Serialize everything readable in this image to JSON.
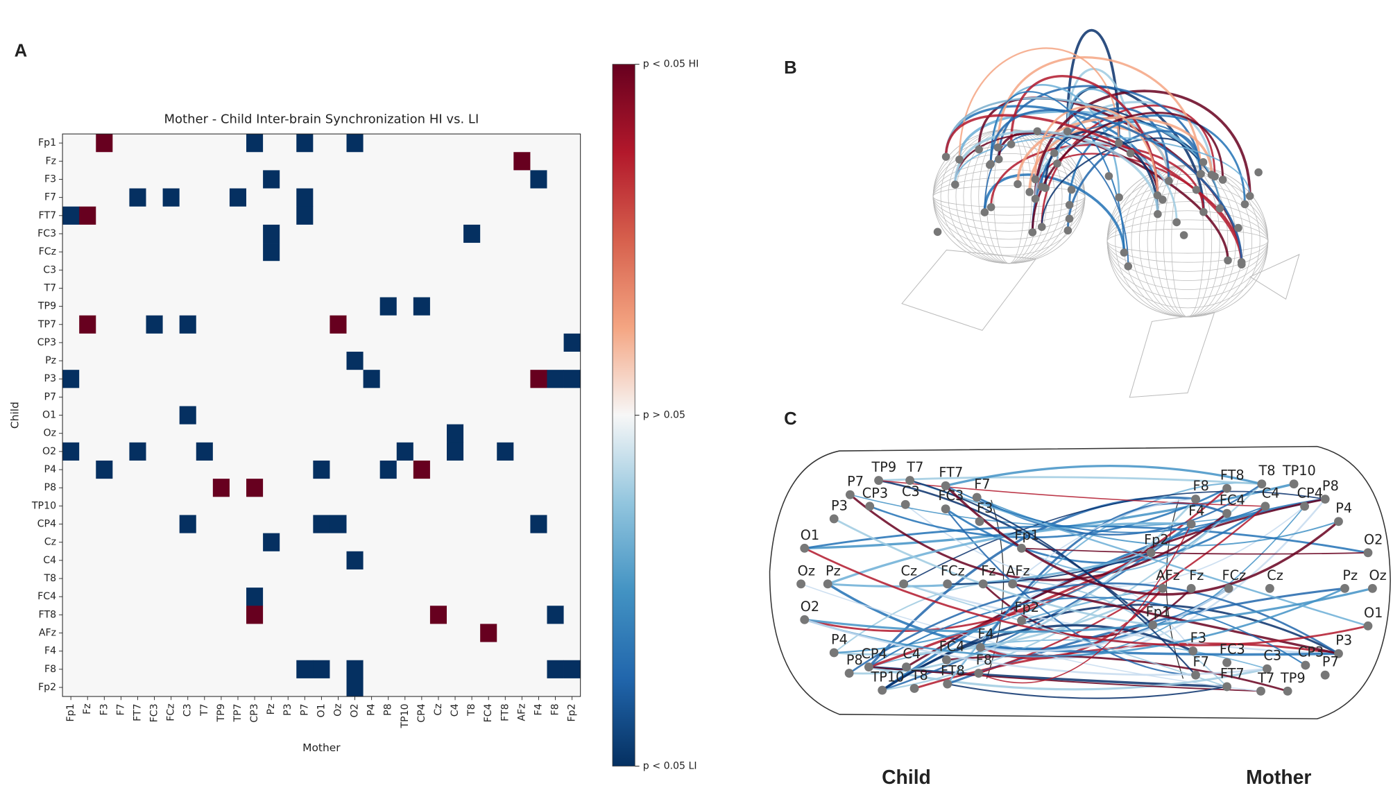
{
  "chart_data": {
    "type": "heatmap",
    "title": "Mother - Child Inter-brain Synchronization HI vs. LI",
    "x_label": "Mother",
    "y_label": "Child",
    "x_categories": [
      "Fp1",
      "Fz",
      "F3",
      "F7",
      "FT7",
      "FC3",
      "FCz",
      "C3",
      "T7",
      "TP9",
      "TP7",
      "CP3",
      "Pz",
      "P3",
      "P7",
      "O1",
      "Oz",
      "O2",
      "P4",
      "P8",
      "TP10",
      "CP4",
      "Cz",
      "C4",
      "T8",
      "FC4",
      "FT8",
      "AFz",
      "F4",
      "F8",
      "Fp2"
    ],
    "y_categories": [
      "Fp1",
      "Fz",
      "F3",
      "F7",
      "FT7",
      "FC3",
      "FCz",
      "C3",
      "T7",
      "TP9",
      "TP7",
      "CP3",
      "Pz",
      "P3",
      "P7",
      "O1",
      "Oz",
      "O2",
      "P4",
      "P8",
      "TP10",
      "CP4",
      "Cz",
      "C4",
      "T8",
      "FC4",
      "FT8",
      "AFz",
      "F4",
      "F8",
      "Fp2"
    ],
    "values": [
      [
        0,
        0,
        1,
        0,
        0,
        0,
        0,
        0,
        0,
        0,
        0,
        -1,
        0,
        0,
        -1,
        0,
        0,
        -1,
        0,
        0,
        0,
        0,
        0,
        0,
        0,
        0,
        0,
        0,
        0,
        0,
        0
      ],
      [
        0,
        0,
        0,
        0,
        0,
        0,
        0,
        0,
        0,
        0,
        0,
        0,
        0,
        0,
        0,
        0,
        0,
        0,
        0,
        0,
        0,
        0,
        0,
        0,
        0,
        0,
        0,
        1,
        0,
        0,
        0
      ],
      [
        0,
        0,
        0,
        0,
        0,
        0,
        0,
        0,
        0,
        0,
        0,
        0,
        -1,
        0,
        0,
        0,
        0,
        0,
        0,
        0,
        0,
        0,
        0,
        0,
        0,
        0,
        0,
        0,
        -1,
        0,
        0
      ],
      [
        0,
        0,
        0,
        0,
        -1,
        0,
        -1,
        0,
        0,
        0,
        -1,
        0,
        0,
        0,
        -1,
        0,
        0,
        0,
        0,
        0,
        0,
        0,
        0,
        0,
        0,
        0,
        0,
        0,
        0,
        0,
        0
      ],
      [
        -1,
        1,
        0,
        0,
        0,
        0,
        0,
        0,
        0,
        0,
        0,
        0,
        0,
        0,
        -1,
        0,
        0,
        0,
        0,
        0,
        0,
        0,
        0,
        0,
        0,
        0,
        0,
        0,
        0,
        0,
        0
      ],
      [
        0,
        0,
        0,
        0,
        0,
        0,
        0,
        0,
        0,
        0,
        0,
        0,
        -1,
        0,
        0,
        0,
        0,
        0,
        0,
        0,
        0,
        0,
        0,
        0,
        -1,
        0,
        0,
        0,
        0,
        0,
        0
      ],
      [
        0,
        0,
        0,
        0,
        0,
        0,
        0,
        0,
        0,
        0,
        0,
        0,
        -1,
        0,
        0,
        0,
        0,
        0,
        0,
        0,
        0,
        0,
        0,
        0,
        0,
        0,
        0,
        0,
        0,
        0,
        0
      ],
      [
        0,
        0,
        0,
        0,
        0,
        0,
        0,
        0,
        0,
        0,
        0,
        0,
        0,
        0,
        0,
        0,
        0,
        0,
        0,
        0,
        0,
        0,
        0,
        0,
        0,
        0,
        0,
        0,
        0,
        0,
        0
      ],
      [
        0,
        0,
        0,
        0,
        0,
        0,
        0,
        0,
        0,
        0,
        0,
        0,
        0,
        0,
        0,
        0,
        0,
        0,
        0,
        0,
        0,
        0,
        0,
        0,
        0,
        0,
        0,
        0,
        0,
        0,
        0
      ],
      [
        0,
        0,
        0,
        0,
        0,
        0,
        0,
        0,
        0,
        0,
        0,
        0,
        0,
        0,
        0,
        0,
        0,
        0,
        0,
        -1,
        0,
        -1,
        0,
        0,
        0,
        0,
        0,
        0,
        0,
        0,
        0
      ],
      [
        0,
        1,
        0,
        0,
        0,
        -1,
        0,
        -1,
        0,
        0,
        0,
        0,
        0,
        0,
        0,
        0,
        1,
        0,
        0,
        0,
        0,
        0,
        0,
        0,
        0,
        0,
        0,
        0,
        0,
        0,
        0
      ],
      [
        0,
        0,
        0,
        0,
        0,
        0,
        0,
        0,
        0,
        0,
        0,
        0,
        0,
        0,
        0,
        0,
        0,
        0,
        0,
        0,
        0,
        0,
        0,
        0,
        0,
        0,
        0,
        0,
        0,
        0,
        -1
      ],
      [
        0,
        0,
        0,
        0,
        0,
        0,
        0,
        0,
        0,
        0,
        0,
        0,
        0,
        0,
        0,
        0,
        0,
        -1,
        0,
        0,
        0,
        0,
        0,
        0,
        0,
        0,
        0,
        0,
        0,
        0,
        0
      ],
      [
        -1,
        0,
        0,
        0,
        0,
        0,
        0,
        0,
        0,
        0,
        0,
        0,
        0,
        0,
        0,
        0,
        0,
        0,
        -1,
        0,
        0,
        0,
        0,
        0,
        0,
        0,
        0,
        0,
        1,
        -1,
        -1
      ],
      [
        0,
        0,
        0,
        0,
        0,
        0,
        0,
        0,
        0,
        0,
        0,
        0,
        0,
        0,
        0,
        0,
        0,
        0,
        0,
        0,
        0,
        0,
        0,
        0,
        0,
        0,
        0,
        0,
        0,
        0,
        0
      ],
      [
        0,
        0,
        0,
        0,
        0,
        0,
        0,
        -1,
        0,
        0,
        0,
        0,
        0,
        0,
        0,
        0,
        0,
        0,
        0,
        0,
        0,
        0,
        0,
        0,
        0,
        0,
        0,
        0,
        0,
        0,
        0
      ],
      [
        0,
        0,
        0,
        0,
        0,
        0,
        0,
        0,
        0,
        0,
        0,
        0,
        0,
        0,
        0,
        0,
        0,
        0,
        0,
        0,
        0,
        0,
        0,
        -1,
        0,
        0,
        0,
        0,
        0,
        0,
        0
      ],
      [
        -1,
        0,
        0,
        0,
        -1,
        0,
        0,
        0,
        -1,
        0,
        0,
        0,
        0,
        0,
        0,
        0,
        0,
        0,
        0,
        0,
        -1,
        0,
        0,
        -1,
        0,
        0,
        -1,
        0,
        0,
        0,
        0
      ],
      [
        0,
        0,
        -1,
        0,
        0,
        0,
        0,
        0,
        0,
        0,
        0,
        0,
        0,
        0,
        0,
        -1,
        0,
        0,
        0,
        -1,
        0,
        1,
        0,
        0,
        0,
        0,
        0,
        0,
        0,
        0,
        0
      ],
      [
        0,
        0,
        0,
        0,
        0,
        0,
        0,
        0,
        0,
        1,
        0,
        1,
        0,
        0,
        0,
        0,
        0,
        0,
        0,
        0,
        0,
        0,
        0,
        0,
        0,
        0,
        0,
        0,
        0,
        0,
        0
      ],
      [
        0,
        0,
        0,
        0,
        0,
        0,
        0,
        0,
        0,
        0,
        0,
        0,
        0,
        0,
        0,
        0,
        0,
        0,
        0,
        0,
        0,
        0,
        0,
        0,
        0,
        0,
        0,
        0,
        0,
        0,
        0
      ],
      [
        0,
        0,
        0,
        0,
        0,
        0,
        0,
        -1,
        0,
        0,
        0,
        0,
        0,
        0,
        0,
        -1,
        -1,
        0,
        0,
        0,
        0,
        0,
        0,
        0,
        0,
        0,
        0,
        0,
        -1,
        0,
        0
      ],
      [
        0,
        0,
        0,
        0,
        0,
        0,
        0,
        0,
        0,
        0,
        0,
        0,
        -1,
        0,
        0,
        0,
        0,
        0,
        0,
        0,
        0,
        0,
        0,
        0,
        0,
        0,
        0,
        0,
        0,
        0,
        0
      ],
      [
        0,
        0,
        0,
        0,
        0,
        0,
        0,
        0,
        0,
        0,
        0,
        0,
        0,
        0,
        0,
        0,
        0,
        -1,
        0,
        0,
        0,
        0,
        0,
        0,
        0,
        0,
        0,
        0,
        0,
        0,
        0
      ],
      [
        0,
        0,
        0,
        0,
        0,
        0,
        0,
        0,
        0,
        0,
        0,
        0,
        0,
        0,
        0,
        0,
        0,
        0,
        0,
        0,
        0,
        0,
        0,
        0,
        0,
        0,
        0,
        0,
        0,
        0,
        0
      ],
      [
        0,
        0,
        0,
        0,
        0,
        0,
        0,
        0,
        0,
        0,
        0,
        -1,
        0,
        0,
        0,
        0,
        0,
        0,
        0,
        0,
        0,
        0,
        0,
        0,
        0,
        0,
        0,
        0,
        0,
        0,
        0
      ],
      [
        0,
        0,
        0,
        0,
        0,
        0,
        0,
        0,
        0,
        0,
        0,
        1,
        0,
        0,
        0,
        0,
        0,
        0,
        0,
        0,
        0,
        0,
        1,
        0,
        0,
        0,
        0,
        0,
        0,
        -1,
        0
      ],
      [
        0,
        0,
        0,
        0,
        0,
        0,
        0,
        0,
        0,
        0,
        0,
        0,
        0,
        0,
        0,
        0,
        0,
        0,
        0,
        0,
        0,
        0,
        0,
        0,
        0,
        1,
        0,
        0,
        0,
        0,
        0
      ],
      [
        0,
        0,
        0,
        0,
        0,
        0,
        0,
        0,
        0,
        0,
        0,
        0,
        0,
        0,
        0,
        0,
        0,
        0,
        0,
        0,
        0,
        0,
        0,
        0,
        0,
        0,
        0,
        0,
        0,
        0,
        0
      ],
      [
        0,
        0,
        0,
        0,
        0,
        0,
        0,
        0,
        0,
        0,
        0,
        0,
        0,
        0,
        -1,
        -1,
        0,
        -1,
        0,
        0,
        0,
        0,
        0,
        0,
        0,
        0,
        0,
        0,
        0,
        -1,
        -1
      ],
      [
        0,
        0,
        0,
        0,
        0,
        0,
        0,
        0,
        0,
        0,
        0,
        0,
        0,
        0,
        0,
        0,
        0,
        -1,
        0,
        0,
        0,
        0,
        0,
        0,
        0,
        0,
        0,
        0,
        0,
        0,
        0
      ]
    ],
    "colormap": "RdBu_r",
    "zlim": [
      -1,
      1
    ],
    "zticks": [
      {
        "value": 1,
        "label": "p < 0.05 HI"
      },
      {
        "value": 0,
        "label": "p > 0.05"
      },
      {
        "value": -1,
        "label": "p < 0.05 LI"
      }
    ]
  },
  "figure": {
    "panel_labels": [
      "A",
      "B",
      "C"
    ],
    "child_electrodes": [
      "P7",
      "TP9",
      "T7",
      "FT7",
      "F7",
      "CP3",
      "C3",
      "FC3",
      "F3",
      "P3",
      "O1",
      "Fp1",
      "Oz",
      "Pz",
      "Cz",
      "FCz",
      "Fz",
      "AFz",
      "O2",
      "Fp2",
      "P4",
      "CP4",
      "C4",
      "FC4",
      "F4",
      "P8",
      "TP10",
      "T8",
      "FT8",
      "F8"
    ],
    "mother_electrodes": [
      "FT8",
      "T8",
      "TP10",
      "P8",
      "F8",
      "FC4",
      "C4",
      "CP4",
      "F4",
      "P4",
      "O2",
      "Fp2",
      "AFz",
      "Fz",
      "FCz",
      "Cz",
      "Pz",
      "Oz",
      "Fp1",
      "O1",
      "F3",
      "FC3",
      "C3",
      "CP3",
      "P3",
      "F7",
      "FT7",
      "T7",
      "TP9",
      "P7"
    ],
    "head_labels": [
      "Child",
      "Mother"
    ]
  }
}
